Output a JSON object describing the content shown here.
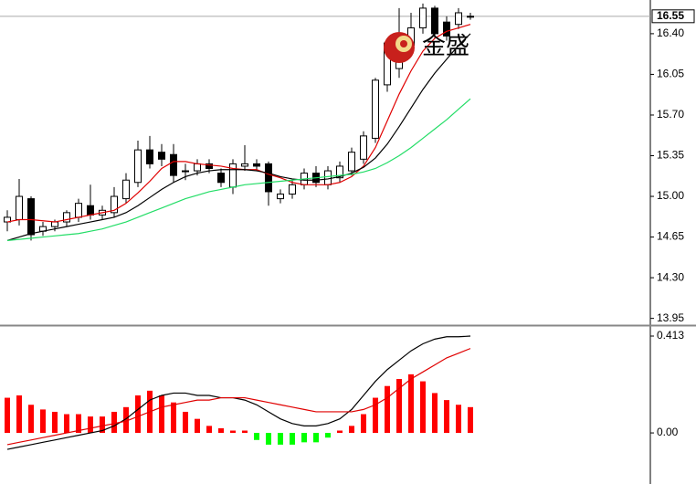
{
  "watermark": "金盛",
  "chart_data": [
    {
      "type": "candlestick",
      "ylim": [
        13.9,
        16.69
      ],
      "yticks": [
        {
          "value": 16.4,
          "label": "16.40"
        },
        {
          "value": 16.05,
          "label": "16.05"
        },
        {
          "value": 15.7,
          "label": "15.70"
        },
        {
          "value": 15.35,
          "label": "15.35"
        },
        {
          "value": 15.0,
          "label": "15.00"
        },
        {
          "value": 14.65,
          "label": "14.65"
        },
        {
          "value": 14.3,
          "label": "14.30"
        },
        {
          "value": 13.95,
          "label": "13.95"
        }
      ],
      "last_price": {
        "value": 16.55,
        "label": "16.55"
      },
      "up_color": "#ffffff",
      "down_color": "#000000",
      "open": [
        14.78,
        14.8,
        14.98,
        14.7,
        14.74,
        14.78,
        14.82,
        14.92,
        14.84,
        14.86,
        14.98,
        15.12,
        15.4,
        15.38,
        15.36,
        15.22,
        15.22,
        15.28,
        15.2,
        15.08,
        15.26,
        15.28,
        15.28,
        14.98,
        15.02,
        15.1,
        15.2,
        15.1,
        15.16,
        15.22,
        15.32,
        15.5,
        15.96,
        16.1,
        16.3,
        16.45,
        16.62,
        16.5,
        16.48,
        16.55
      ],
      "high": [
        14.88,
        15.15,
        15.0,
        14.78,
        14.8,
        14.88,
        14.98,
        15.1,
        14.92,
        15.08,
        15.2,
        15.48,
        15.52,
        15.45,
        15.45,
        15.28,
        15.32,
        15.32,
        15.24,
        15.32,
        15.44,
        15.32,
        15.3,
        15.06,
        15.14,
        15.24,
        15.26,
        15.26,
        15.3,
        15.42,
        15.56,
        16.02,
        16.35,
        16.62,
        16.58,
        16.66,
        16.64,
        16.55,
        16.62,
        16.58
      ],
      "low": [
        14.7,
        14.75,
        14.62,
        14.66,
        14.7,
        14.74,
        14.78,
        14.8,
        14.8,
        14.82,
        14.94,
        15.08,
        15.24,
        15.26,
        15.12,
        15.14,
        15.18,
        15.2,
        15.08,
        15.02,
        15.22,
        15.22,
        14.92,
        14.94,
        14.98,
        15.06,
        15.08,
        15.06,
        15.12,
        15.18,
        15.28,
        15.46,
        15.9,
        16.02,
        16.24,
        16.4,
        16.36,
        16.34,
        16.44,
        16.52
      ],
      "close": [
        14.82,
        15.0,
        14.67,
        14.74,
        14.78,
        14.86,
        14.94,
        14.84,
        14.88,
        15.0,
        15.14,
        15.4,
        15.28,
        15.32,
        15.18,
        15.22,
        15.28,
        15.24,
        15.12,
        15.28,
        15.28,
        15.26,
        15.04,
        15.02,
        15.1,
        15.2,
        15.12,
        15.22,
        15.26,
        15.38,
        15.52,
        16.0,
        16.32,
        16.28,
        16.45,
        16.62,
        16.4,
        16.38,
        16.58,
        16.55
      ],
      "series": [
        {
          "color": "#e00000",
          "values": [
            14.78,
            14.8,
            14.8,
            14.79,
            14.78,
            14.8,
            14.82,
            14.84,
            14.86,
            14.88,
            14.94,
            15.03,
            15.13,
            15.24,
            15.3,
            15.3,
            15.28,
            15.27,
            15.26,
            15.24,
            15.23,
            15.23,
            15.19,
            15.16,
            15.12,
            15.1,
            15.1,
            15.1,
            15.12,
            15.17,
            15.26,
            15.42,
            15.65,
            15.88,
            16.08,
            16.25,
            16.36,
            16.42,
            16.45,
            16.48
          ]
        },
        {
          "color": "#000000",
          "values": [
            14.62,
            14.65,
            14.68,
            14.7,
            14.72,
            14.74,
            14.76,
            14.78,
            14.8,
            14.82,
            14.86,
            14.92,
            14.99,
            15.06,
            15.12,
            15.17,
            15.2,
            15.22,
            15.23,
            15.23,
            15.23,
            15.22,
            15.2,
            15.17,
            15.15,
            15.14,
            15.14,
            15.15,
            15.17,
            15.2,
            15.25,
            15.33,
            15.45,
            15.6,
            15.76,
            15.92,
            16.06,
            16.18,
            16.3,
            16.4
          ]
        },
        {
          "color": "#22dd66",
          "values": [
            14.62,
            14.63,
            14.64,
            14.65,
            14.66,
            14.67,
            14.68,
            14.7,
            14.72,
            14.75,
            14.78,
            14.82,
            14.86,
            14.9,
            14.94,
            14.98,
            15.01,
            15.04,
            15.06,
            15.08,
            15.1,
            15.11,
            15.12,
            15.13,
            15.14,
            15.15,
            15.16,
            15.17,
            15.18,
            15.19,
            15.21,
            15.24,
            15.29,
            15.35,
            15.42,
            15.5,
            15.58,
            15.66,
            15.75,
            15.84
          ]
        }
      ]
    },
    {
      "type": "macd",
      "ylim": [
        -0.21,
        0.452
      ],
      "yticks": [
        0.413,
        {
          "value": 0,
          "label": "0.00"
        }
      ],
      "up_color": "#ff0000",
      "down_color": "#00ff00",
      "values": [
        0.15,
        0.16,
        0.12,
        0.1,
        0.09,
        0.08,
        0.08,
        0.07,
        0.07,
        0.09,
        0.11,
        0.16,
        0.18,
        0.16,
        0.13,
        0.09,
        0.06,
        0.03,
        0.02,
        0.01,
        0.01,
        -0.03,
        -0.05,
        -0.05,
        -0.05,
        -0.04,
        -0.04,
        -0.02,
        0.01,
        0.03,
        0.08,
        0.15,
        0.2,
        0.23,
        0.25,
        0.22,
        0.17,
        0.14,
        0.12,
        0.11
      ],
      "series": [
        {
          "color": "#000000",
          "values": [
            -0.07,
            -0.06,
            -0.05,
            -0.04,
            -0.03,
            -0.02,
            -0.01,
            0.0,
            0.01,
            0.03,
            0.06,
            0.1,
            0.14,
            0.16,
            0.17,
            0.17,
            0.16,
            0.16,
            0.15,
            0.15,
            0.14,
            0.12,
            0.09,
            0.06,
            0.04,
            0.03,
            0.03,
            0.04,
            0.06,
            0.1,
            0.16,
            0.22,
            0.27,
            0.31,
            0.35,
            0.38,
            0.4,
            0.41,
            0.41,
            0.413
          ]
        },
        {
          "color": "#e00000",
          "values": [
            -0.05,
            -0.04,
            -0.03,
            -0.02,
            -0.01,
            0.0,
            0.01,
            0.02,
            0.03,
            0.04,
            0.05,
            0.07,
            0.09,
            0.11,
            0.12,
            0.13,
            0.14,
            0.14,
            0.15,
            0.15,
            0.15,
            0.14,
            0.13,
            0.12,
            0.11,
            0.1,
            0.09,
            0.09,
            0.09,
            0.09,
            0.1,
            0.12,
            0.15,
            0.19,
            0.23,
            0.26,
            0.29,
            0.32,
            0.34,
            0.36
          ]
        }
      ]
    }
  ]
}
